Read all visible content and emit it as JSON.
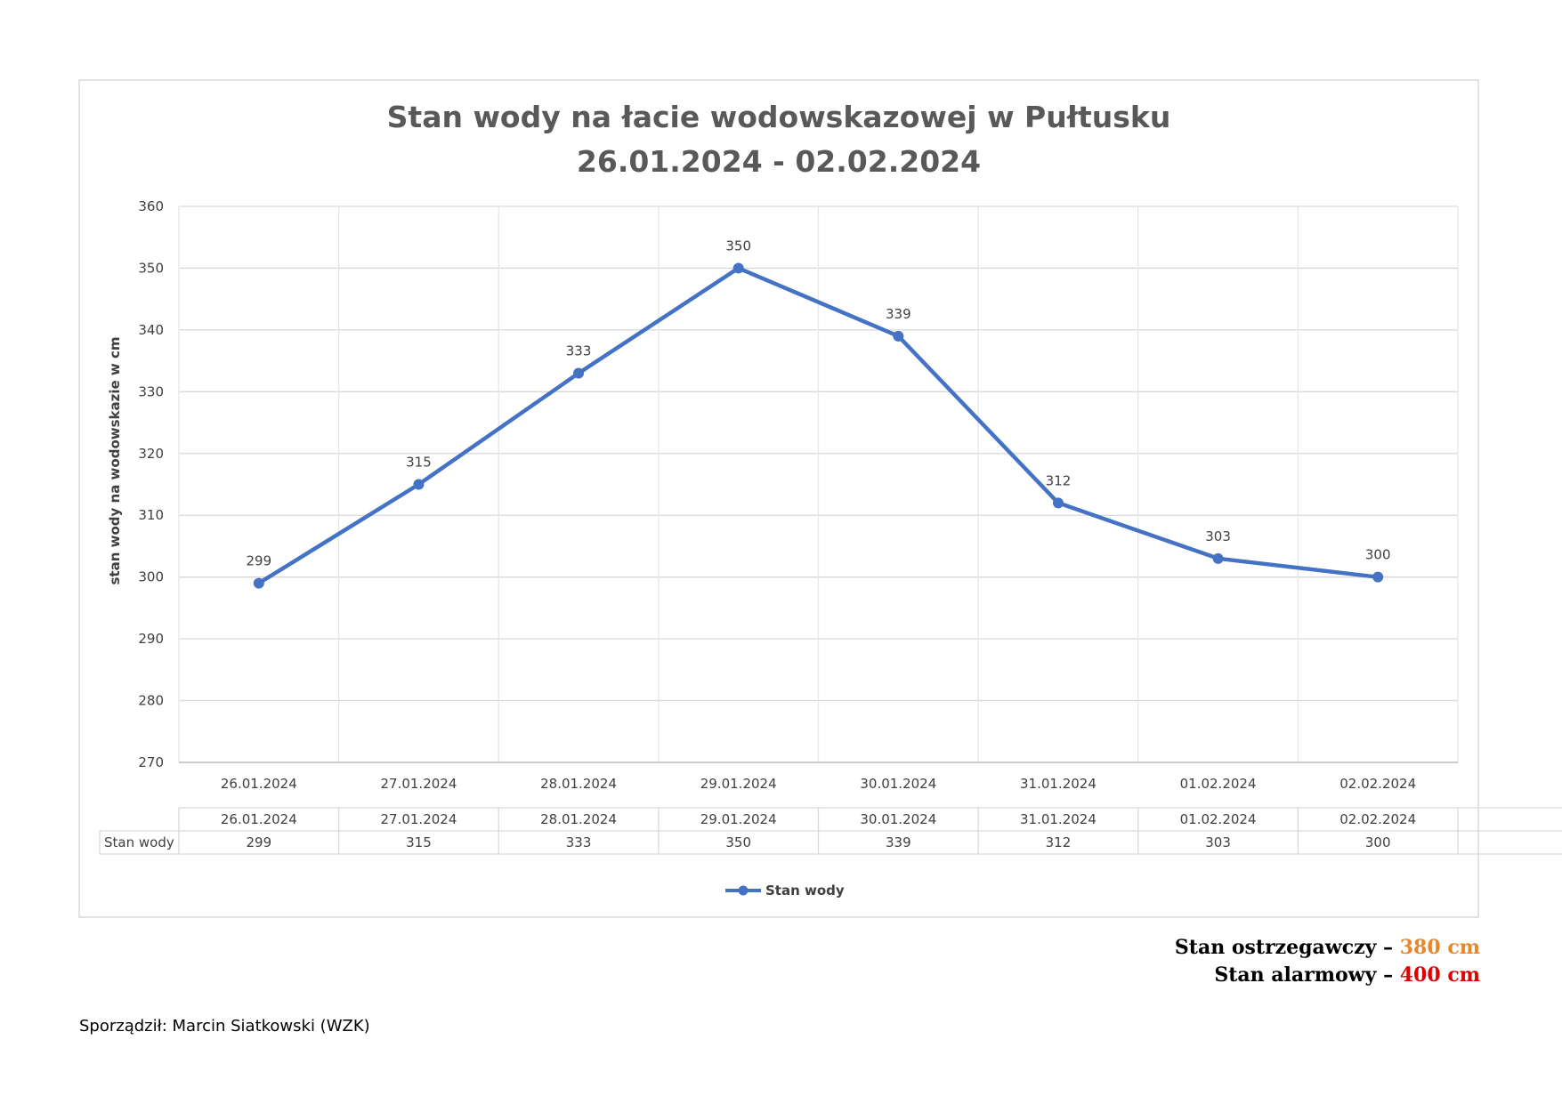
{
  "chart_data": {
    "type": "line",
    "title": [
      "Stan wody na łacie wodowskazowej w Pułtusku",
      "26.01.2024 - 02.02.2024"
    ],
    "ylabel": "stan wody na wodowskazie w cm",
    "xlabel": "",
    "ylim": [
      270,
      360
    ],
    "yticks": [
      270,
      280,
      290,
      300,
      310,
      320,
      330,
      340,
      350,
      360
    ],
    "grid": true,
    "legend_position": "bottom",
    "categories": [
      "26.01.2024",
      "27.01.2024",
      "28.01.2024",
      "29.01.2024",
      "30.01.2024",
      "31.01.2024",
      "01.02.2024",
      "02.02.2024"
    ],
    "series": [
      {
        "name": "Stan wody",
        "values": [
          299,
          315,
          333,
          350,
          339,
          312,
          303,
          300
        ],
        "color": "#4472c4"
      }
    ],
    "data_table": {
      "columns": [
        "26.01.2024",
        "27.01.2024",
        "28.01.2024",
        "29.01.2024",
        "30.01.2024",
        "31.01.2024",
        "01.02.2024",
        "02.02.2024",
        "",
        ""
      ],
      "rows": [
        {
          "label": "Stan wody",
          "values": [
            "299",
            "315",
            "333",
            "350",
            "339",
            "312",
            "303",
            "300",
            "",
            ""
          ]
        }
      ]
    }
  },
  "thresholds": {
    "warning": {
      "label": "Stan ostrzegawczy –",
      "value": "380 cm",
      "color": "#e8862a"
    },
    "alarm": {
      "label": "Stan alarmowy –",
      "value": "400 cm",
      "color": "#e00000"
    }
  },
  "footer": {
    "text": "Sporządził: Marcin Siatkowski (WZK)"
  }
}
